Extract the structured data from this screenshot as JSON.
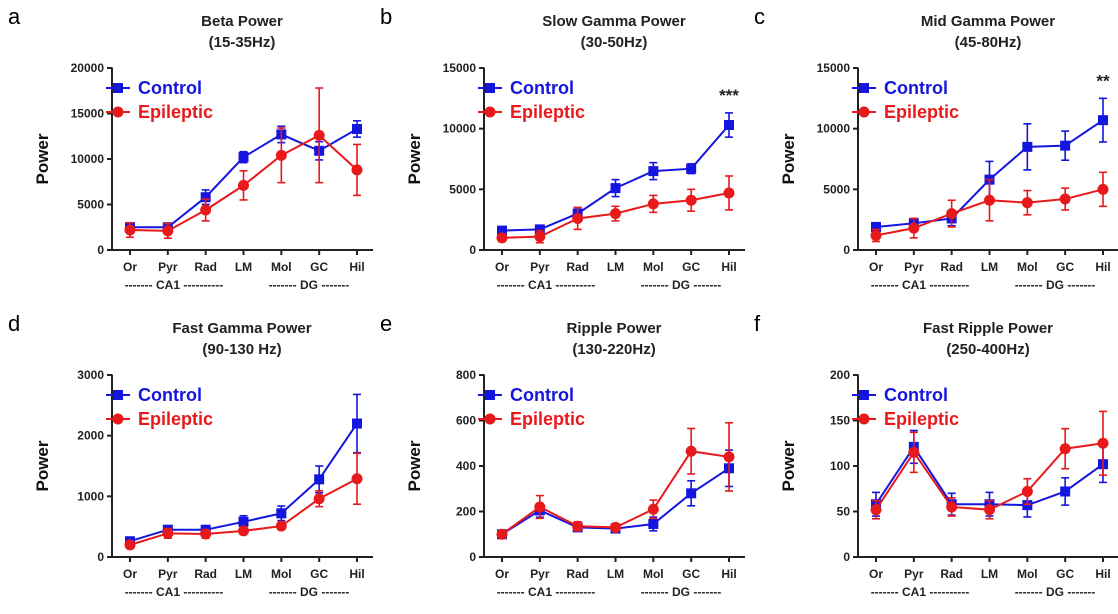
{
  "colors": {
    "control": "#1515e0",
    "epileptic": "#e8191b",
    "axis": "#222222"
  },
  "chart_data": [
    {
      "letter": "a",
      "type": "line",
      "title": "Beta Power",
      "subtitle": "(15-35Hz)",
      "ylabel": "Power",
      "ylim": [
        0,
        20000
      ],
      "yticks": [
        0,
        5000,
        10000,
        15000,
        20000
      ],
      "categories": [
        "Or",
        "Pyr",
        "Rad",
        "LM",
        "Mol",
        "GC",
        "Hil"
      ],
      "region_labels": [
        "------- CA1 ----------",
        "------- DG -------"
      ],
      "significance": "",
      "legend_position": "top-left",
      "series": [
        {
          "name": "Control",
          "marker": "square",
          "color": "#1515e0",
          "values": [
            2500,
            2500,
            5800,
            10200,
            12700,
            10900,
            13300
          ],
          "errors": [
            400,
            300,
            800,
            600,
            900,
            1000,
            900
          ]
        },
        {
          "name": "Epileptic",
          "marker": "circle",
          "color": "#e8191b",
          "values": [
            2200,
            2100,
            4400,
            7100,
            10400,
            12600,
            8800
          ],
          "errors": [
            800,
            800,
            1200,
            1600,
            3000,
            5200,
            2800
          ]
        }
      ]
    },
    {
      "letter": "b",
      "type": "line",
      "title": "Slow Gamma Power",
      "subtitle": "(30-50Hz)",
      "ylabel": "Power",
      "ylim": [
        0,
        15000
      ],
      "yticks": [
        0,
        5000,
        10000,
        15000
      ],
      "categories": [
        "Or",
        "Pyr",
        "Rad",
        "LM",
        "Mol",
        "GC",
        "Hil"
      ],
      "region_labels": [
        "------- CA1 ----------",
        "------- DG -------"
      ],
      "significance": "***",
      "legend_position": "top-left",
      "series": [
        {
          "name": "Control",
          "marker": "square",
          "color": "#1515e0",
          "values": [
            1600,
            1700,
            3000,
            5100,
            6500,
            6700,
            10300
          ],
          "errors": [
            300,
            300,
            500,
            700,
            700,
            400,
            1000
          ]
        },
        {
          "name": "Epileptic",
          "marker": "circle",
          "color": "#e8191b",
          "values": [
            1000,
            1100,
            2600,
            3000,
            3800,
            4100,
            4700
          ],
          "errors": [
            300,
            500,
            900,
            600,
            700,
            900,
            1400
          ]
        }
      ]
    },
    {
      "letter": "c",
      "type": "line",
      "title": "Mid Gamma Power",
      "subtitle": "(45-80Hz)",
      "ylabel": "Power",
      "ylim": [
        0,
        15000
      ],
      "yticks": [
        0,
        5000,
        10000,
        15000
      ],
      "categories": [
        "Or",
        "Pyr",
        "Rad",
        "LM",
        "Mol",
        "GC",
        "Hil"
      ],
      "region_labels": [
        "------- CA1 ----------",
        "------- DG -------"
      ],
      "significance": "**",
      "legend_position": "top-left",
      "series": [
        {
          "name": "Control",
          "marker": "square",
          "color": "#1515e0",
          "values": [
            1900,
            2200,
            2600,
            5800,
            8500,
            8600,
            10700
          ],
          "errors": [
            300,
            400,
            600,
            1500,
            1900,
            1200,
            1800
          ]
        },
        {
          "name": "Epileptic",
          "marker": "circle",
          "color": "#e8191b",
          "values": [
            1200,
            1800,
            3000,
            4100,
            3900,
            4200,
            5000
          ],
          "errors": [
            500,
            800,
            1100,
            1700,
            1000,
            900,
            1400
          ]
        }
      ]
    },
    {
      "letter": "d",
      "type": "line",
      "title": "Fast Gamma Power",
      "subtitle": "(90-130 Hz)",
      "ylabel": "Power",
      "ylim": [
        0,
        3000
      ],
      "yticks": [
        0,
        1000,
        2000,
        3000
      ],
      "categories": [
        "Or",
        "Pyr",
        "Rad",
        "LM",
        "Mol",
        "GC",
        "Hil"
      ],
      "region_labels": [
        "------- CA1 ----------",
        "------- DG -------"
      ],
      "significance": "",
      "legend_position": "top-left",
      "series": [
        {
          "name": "Control",
          "marker": "square",
          "color": "#1515e0",
          "values": [
            260,
            450,
            450,
            580,
            720,
            1280,
            2200
          ],
          "errors": [
            60,
            60,
            60,
            100,
            120,
            220,
            480
          ]
        },
        {
          "name": "Epileptic",
          "marker": "circle",
          "color": "#e8191b",
          "values": [
            200,
            390,
            380,
            430,
            510,
            960,
            1290
          ],
          "errors": [
            60,
            80,
            70,
            60,
            50,
            130,
            420
          ]
        }
      ]
    },
    {
      "letter": "e",
      "type": "line",
      "title": "Ripple Power",
      "subtitle": "(130-220Hz)",
      "ylabel": "Power",
      "ylim": [
        0,
        800
      ],
      "yticks": [
        0,
        200,
        400,
        600,
        800
      ],
      "categories": [
        "Or",
        "Pyr",
        "Rad",
        "LM",
        "Mol",
        "GC",
        "Hil"
      ],
      "region_labels": [
        "------- CA1 ----------",
        "------- DG -------"
      ],
      "significance": "",
      "legend_position": "top-left",
      "series": [
        {
          "name": "Control",
          "marker": "square",
          "color": "#1515e0",
          "values": [
            100,
            205,
            130,
            125,
            145,
            280,
            390
          ],
          "errors": [
            15,
            30,
            15,
            10,
            30,
            55,
            80
          ]
        },
        {
          "name": "Epileptic",
          "marker": "circle",
          "color": "#e8191b",
          "values": [
            100,
            220,
            135,
            130,
            210,
            465,
            440
          ],
          "errors": [
            15,
            50,
            20,
            15,
            40,
            100,
            150
          ]
        }
      ]
    },
    {
      "letter": "f",
      "type": "line",
      "title": "Fast Ripple Power",
      "subtitle": "(250-400Hz)",
      "ylabel": "Power",
      "ylim": [
        0,
        200
      ],
      "yticks": [
        0,
        50,
        100,
        150,
        200
      ],
      "categories": [
        "Or",
        "Pyr",
        "Rad",
        "LM",
        "Mol",
        "GC",
        "Hil"
      ],
      "region_labels": [
        "------- CA1 ----------",
        "------- DG -------"
      ],
      "significance": "",
      "legend_position": "top-left",
      "series": [
        {
          "name": "Control",
          "marker": "square",
          "color": "#1515e0",
          "values": [
            58,
            121,
            58,
            58,
            57,
            72,
            102
          ],
          "errors": [
            13,
            18,
            12,
            13,
            13,
            15,
            20
          ]
        },
        {
          "name": "Epileptic",
          "marker": "circle",
          "color": "#e8191b",
          "values": [
            52,
            115,
            55,
            52,
            72,
            119,
            125
          ],
          "errors": [
            10,
            22,
            10,
            10,
            14,
            22,
            35
          ]
        }
      ]
    }
  ]
}
